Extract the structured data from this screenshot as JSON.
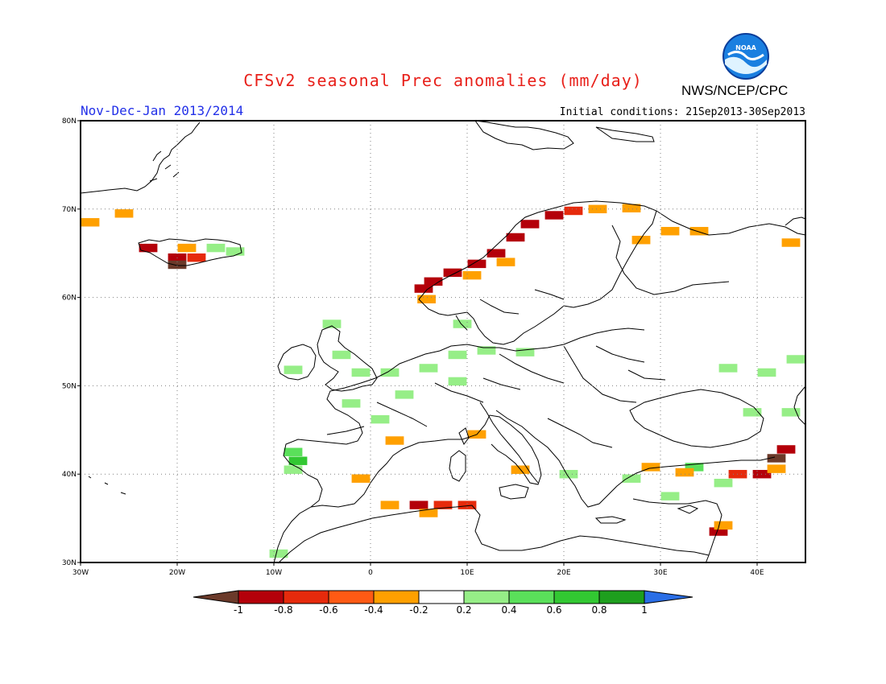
{
  "header": {
    "title": "CFSv2 seasonal Prec anomalies (mm/day)",
    "season": "Nov-Dec-Jan 2013/2014",
    "initial_conditions": "Initial conditions: 21Sep2013-30Sep2013",
    "agency": "NWS/NCEP/CPC",
    "logo_text": "NOAA"
  },
  "map": {
    "lon_range": [
      -30,
      45
    ],
    "lat_range": [
      30,
      80
    ],
    "lon_ticks": [
      "30W",
      "20W",
      "10W",
      "0",
      "10E",
      "20E",
      "30E",
      "40E"
    ],
    "lat_ticks": [
      "30N",
      "40N",
      "50N",
      "60N",
      "70N",
      "80N"
    ]
  },
  "colorbar": {
    "labels": [
      "-1",
      "-0.8",
      "-0.6",
      "-0.4",
      "-0.2",
      "0.2",
      "0.4",
      "0.6",
      "0.8",
      "1"
    ],
    "colors": [
      "#6b3a2a",
      "#b4000a",
      "#e62a0c",
      "#ff5a14",
      "#ffa000",
      "#ffffff",
      "#96ee87",
      "#5ae05a",
      "#32c832",
      "#1e9f1e",
      "#2a6ee6"
    ]
  },
  "anomaly_cells": [
    {
      "lon": -29,
      "lat": 68.5,
      "c": "#ffa000"
    },
    {
      "lon": -25.5,
      "lat": 69.5,
      "c": "#ffa000"
    },
    {
      "lon": -23,
      "lat": 65.6,
      "c": "#b4000a"
    },
    {
      "lon": -20,
      "lat": 64.5,
      "c": "#b4000a"
    },
    {
      "lon": -20,
      "lat": 63.7,
      "c": "#6b3a2a"
    },
    {
      "lon": -18,
      "lat": 64.5,
      "c": "#e62a0c"
    },
    {
      "lon": -19,
      "lat": 65.6,
      "c": "#ffa000"
    },
    {
      "lon": -16,
      "lat": 65.6,
      "c": "#96ee87"
    },
    {
      "lon": -14,
      "lat": 65.2,
      "c": "#96ee87"
    },
    {
      "lon": 5.5,
      "lat": 61,
      "c": "#b4000a"
    },
    {
      "lon": 6.5,
      "lat": 61.8,
      "c": "#b4000a"
    },
    {
      "lon": 8.5,
      "lat": 62.8,
      "c": "#b4000a"
    },
    {
      "lon": 11,
      "lat": 63.8,
      "c": "#b4000a"
    },
    {
      "lon": 13,
      "lat": 65,
      "c": "#b4000a"
    },
    {
      "lon": 15,
      "lat": 66.8,
      "c": "#b4000a"
    },
    {
      "lon": 16.5,
      "lat": 68.3,
      "c": "#b4000a"
    },
    {
      "lon": 19,
      "lat": 69.3,
      "c": "#b4000a"
    },
    {
      "lon": 21,
      "lat": 69.8,
      "c": "#e62a0c"
    },
    {
      "lon": 23.5,
      "lat": 70,
      "c": "#ffa000"
    },
    {
      "lon": 27,
      "lat": 70.1,
      "c": "#ffa000"
    },
    {
      "lon": 5.8,
      "lat": 59.8,
      "c": "#ffa000"
    },
    {
      "lon": 10.5,
      "lat": 62.5,
      "c": "#ffa000"
    },
    {
      "lon": 14,
      "lat": 64,
      "c": "#ffa000"
    },
    {
      "lon": 31,
      "lat": 67.5,
      "c": "#ffa000"
    },
    {
      "lon": 34,
      "lat": 67.5,
      "c": "#ffa000"
    },
    {
      "lon": 28,
      "lat": 66.5,
      "c": "#ffa000"
    },
    {
      "lon": 43.5,
      "lat": 66.2,
      "c": "#ffa000"
    },
    {
      "lon": -8,
      "lat": 51.8,
      "c": "#96ee87"
    },
    {
      "lon": -3,
      "lat": 53.5,
      "c": "#96ee87"
    },
    {
      "lon": -1,
      "lat": 51.5,
      "c": "#96ee87"
    },
    {
      "lon": 2,
      "lat": 51.5,
      "c": "#96ee87"
    },
    {
      "lon": -4,
      "lat": 57,
      "c": "#96ee87"
    },
    {
      "lon": 6,
      "lat": 52,
      "c": "#96ee87"
    },
    {
      "lon": 9,
      "lat": 53.5,
      "c": "#96ee87"
    },
    {
      "lon": 12,
      "lat": 54,
      "c": "#96ee87"
    },
    {
      "lon": 16,
      "lat": 53.8,
      "c": "#96ee87"
    },
    {
      "lon": 9.5,
      "lat": 57,
      "c": "#96ee87"
    },
    {
      "lon": 9,
      "lat": 50.5,
      "c": "#96ee87"
    },
    {
      "lon": 3.5,
      "lat": 49,
      "c": "#96ee87"
    },
    {
      "lon": -2,
      "lat": 48,
      "c": "#96ee87"
    },
    {
      "lon": 1,
      "lat": 46.2,
      "c": "#96ee87"
    },
    {
      "lon": -8,
      "lat": 42.5,
      "c": "#5ae05a"
    },
    {
      "lon": -7.5,
      "lat": 41.5,
      "c": "#32c832"
    },
    {
      "lon": -8,
      "lat": 40.5,
      "c": "#96ee87"
    },
    {
      "lon": 2.5,
      "lat": 43.8,
      "c": "#ffa000"
    },
    {
      "lon": 11,
      "lat": 44.5,
      "c": "#ffa000"
    },
    {
      "lon": -1,
      "lat": 39.5,
      "c": "#ffa000"
    },
    {
      "lon": 15.5,
      "lat": 40.5,
      "c": "#ffa000"
    },
    {
      "lon": 2,
      "lat": 36.5,
      "c": "#ffa000"
    },
    {
      "lon": 5,
      "lat": 36.5,
      "c": "#b4000a"
    },
    {
      "lon": 7.5,
      "lat": 36.5,
      "c": "#e62a0c"
    },
    {
      "lon": 10,
      "lat": 36.5,
      "c": "#e62a0c"
    },
    {
      "lon": 6,
      "lat": 35.6,
      "c": "#ffa000"
    },
    {
      "lon": 20.5,
      "lat": 40,
      "c": "#96ee87"
    },
    {
      "lon": 27,
      "lat": 39.5,
      "c": "#96ee87"
    },
    {
      "lon": 31,
      "lat": 37.5,
      "c": "#96ee87"
    },
    {
      "lon": 33.5,
      "lat": 40.8,
      "c": "#5ae05a"
    },
    {
      "lon": 36.5,
      "lat": 39,
      "c": "#96ee87"
    },
    {
      "lon": 38,
      "lat": 40,
      "c": "#e62a0c"
    },
    {
      "lon": 40.5,
      "lat": 40,
      "c": "#b4000a"
    },
    {
      "lon": 42,
      "lat": 40.6,
      "c": "#ffa000"
    },
    {
      "lon": 42,
      "lat": 41.8,
      "c": "#6b3a2a"
    },
    {
      "lon": 43,
      "lat": 42.8,
      "c": "#b4000a"
    },
    {
      "lon": 36,
      "lat": 33.5,
      "c": "#b4000a"
    },
    {
      "lon": 36.5,
      "lat": 34.2,
      "c": "#ffa000"
    },
    {
      "lon": 37,
      "lat": 52,
      "c": "#96ee87"
    },
    {
      "lon": 41,
      "lat": 51.5,
      "c": "#96ee87"
    },
    {
      "lon": 44,
      "lat": 53,
      "c": "#96ee87"
    },
    {
      "lon": 39.5,
      "lat": 47,
      "c": "#96ee87"
    },
    {
      "lon": 43.5,
      "lat": 47,
      "c": "#96ee87"
    },
    {
      "lon": 32.5,
      "lat": 40.2,
      "c": "#ffa000"
    },
    {
      "lon": 29,
      "lat": 40.8,
      "c": "#ffa000"
    },
    {
      "lon": -9.5,
      "lat": 31,
      "c": "#96ee87"
    }
  ]
}
